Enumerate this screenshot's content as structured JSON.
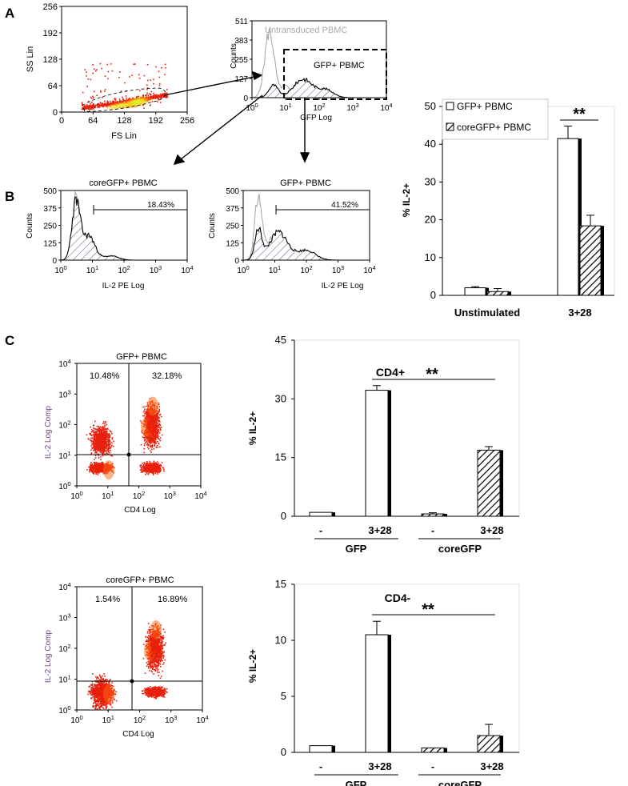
{
  "panels": {
    "A": "A",
    "B": "B",
    "C": "C"
  },
  "colors": {
    "dots": "#e8200c",
    "dense": "#f7e816",
    "grey": "#a9a9a9",
    "hatch": "#6b4a80"
  },
  "chart_data": [
    {
      "id": "scatter-ss-fs",
      "type": "scatter",
      "xlabel": "FS Lin",
      "ylabel": "SS Lin",
      "xticks": [
        "0",
        "64",
        "128",
        "192",
        "256"
      ],
      "yticks": [
        "0",
        "64",
        "128",
        "192",
        "256"
      ],
      "xlim": [
        0,
        256
      ],
      "ylim": [
        0,
        256
      ]
    },
    {
      "id": "hist-gfp",
      "type": "area",
      "xlabel": "GFP Log",
      "ylabel": "Counts",
      "xticks": [
        "10^0",
        "10^1",
        "10^2",
        "10^3",
        "10^4"
      ],
      "yticks": [
        "0",
        "127",
        "255",
        "383",
        "511"
      ],
      "legend": [
        "Untransduced PBMC",
        "GFP+ PBMC"
      ],
      "ylim": [
        0,
        511
      ]
    },
    {
      "id": "hist-core-il2",
      "type": "area",
      "title": "coreGFP+ PBMC",
      "xlabel": "IL-2 PE Log",
      "ylabel": "Counts",
      "xticks": [
        "10^0",
        "10^1",
        "10^2",
        "10^3",
        "10^4"
      ],
      "yticks": [
        "0",
        "125",
        "250",
        "375",
        "500"
      ],
      "annotation": "18.43%",
      "ylim": [
        0,
        500
      ]
    },
    {
      "id": "hist-gfp-il2",
      "type": "area",
      "title": "GFP+ PBMC",
      "xlabel": "IL-2 PE Log",
      "ylabel": "Counts",
      "xticks": [
        "10^0",
        "10^1",
        "10^2",
        "10^3",
        "10^4"
      ],
      "yticks": [
        "0",
        "125",
        "250",
        "375",
        "500"
      ],
      "annotation": "41.52%",
      "ylim": [
        0,
        500
      ]
    },
    {
      "id": "bar-b",
      "type": "bar",
      "ylabel": "% IL-2+",
      "categories": [
        "Unstimulated",
        "3+28"
      ],
      "series": [
        {
          "name": "GFP+ PBMC",
          "values": [
            2.0,
            41.5
          ],
          "errors": [
            0.3,
            3.3
          ]
        },
        {
          "name": "coreGFP+ PBMC",
          "values": [
            1.0,
            18.4
          ],
          "errors": [
            0.8,
            2.8
          ]
        }
      ],
      "yticks": [
        "0",
        "10",
        "20",
        "30",
        "40",
        "50"
      ],
      "ylim": [
        0,
        50
      ],
      "significance": "**"
    },
    {
      "id": "dot-gfp-cd4",
      "type": "scatter",
      "title": "GFP+ PBMC",
      "xlabel": "CD4 Log",
      "ylabel": "IL-2 Log Comp",
      "xticks": [
        "10^0",
        "10^1",
        "10^2",
        "10^3",
        "10^4"
      ],
      "yticks": [
        "10^0",
        "10^1",
        "10^2",
        "10^3",
        "10^4"
      ],
      "quadrants": [
        "10.48%",
        "32.18%"
      ]
    },
    {
      "id": "bar-cd4pos",
      "type": "bar",
      "title": "CD4+",
      "ylabel": "% IL-2+",
      "categories": [
        "-",
        "3+28",
        "-",
        "3+28"
      ],
      "groups": [
        "GFP",
        "coreGFP"
      ],
      "values": [
        1.0,
        32.2,
        0.6,
        16.9
      ],
      "errors": [
        0.0,
        1.2,
        0.3,
        0.9
      ],
      "yticks": [
        "0",
        "15",
        "30",
        "45"
      ],
      "ylim": [
        0,
        45
      ],
      "significance": "**"
    },
    {
      "id": "dot-core-cd4",
      "type": "scatter",
      "title": "coreGFP+ PBMC",
      "xlabel": "CD4 Log",
      "ylabel": "IL-2 Log Comp",
      "xticks": [
        "10^0",
        "10^1",
        "10^2",
        "10^3",
        "10^4"
      ],
      "yticks": [
        "10^0",
        "10^1",
        "10^2",
        "10^3",
        "10^4"
      ],
      "quadrants": [
        "1.54%",
        "16.89%"
      ]
    },
    {
      "id": "bar-cd4neg",
      "type": "bar",
      "title": "CD4-",
      "ylabel": "% IL-2+",
      "categories": [
        "-",
        "3+28",
        "-",
        "3+28"
      ],
      "groups": [
        "GFP",
        "coreGFP"
      ],
      "values": [
        0.6,
        10.5,
        0.4,
        1.5
      ],
      "errors": [
        0.0,
        1.2,
        0.0,
        1.0
      ],
      "yticks": [
        "0",
        "5",
        "10",
        "15"
      ],
      "ylim": [
        0,
        15
      ],
      "significance": "**"
    }
  ]
}
